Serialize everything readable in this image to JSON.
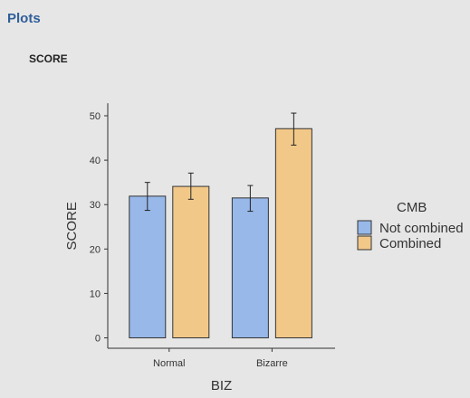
{
  "panel": {
    "title": "Plots"
  },
  "chart_data": {
    "type": "bar",
    "title": "SCORE",
    "xlabel": "BIZ",
    "ylabel": "SCORE",
    "categories": [
      "Normal",
      "Bizarre"
    ],
    "ylim": [
      0,
      52
    ],
    "yticks": [
      0,
      10,
      20,
      30,
      40,
      50
    ],
    "grid": false,
    "legend": {
      "title": "CMB",
      "position": "right"
    },
    "series": [
      {
        "name": "Not combined",
        "color": "#97b8e8",
        "values": [
          31.9,
          31.5
        ],
        "error_low": [
          28.7,
          28.5
        ],
        "error_high": [
          35.0,
          34.3
        ]
      },
      {
        "name": "Combined",
        "color": "#f2c889",
        "values": [
          34.1,
          47.1
        ],
        "error_low": [
          31.2,
          43.4
        ],
        "error_high": [
          37.1,
          50.6
        ]
      }
    ]
  }
}
